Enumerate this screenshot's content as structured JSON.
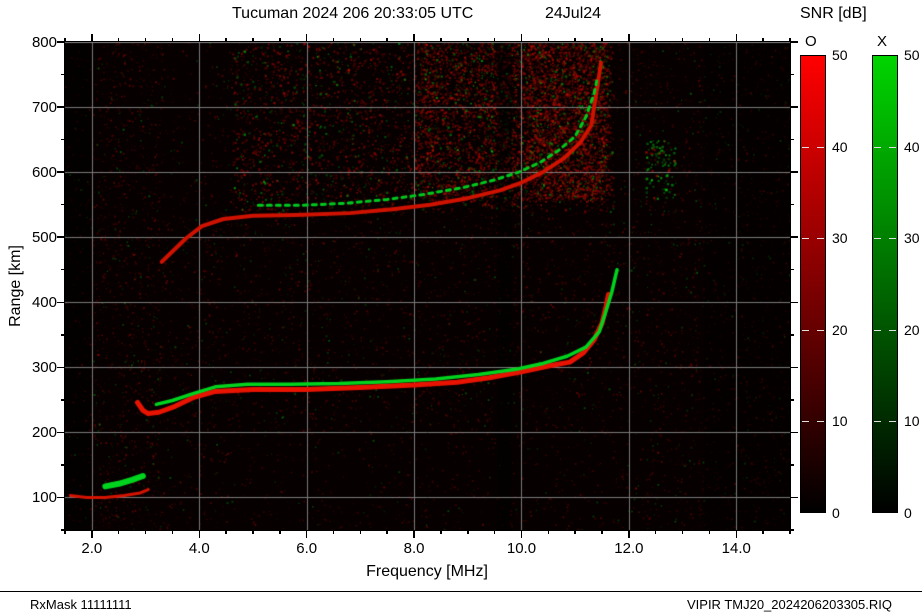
{
  "header": {
    "title": "Tucuman 2024 206 20:33:05 UTC",
    "date": "24Jul24"
  },
  "snr_panel": {
    "title": "SNR [dB]",
    "bars": [
      {
        "label": "O",
        "top_color": "#ff0000",
        "bottom_color": "#000000"
      },
      {
        "label": "X",
        "top_color": "#00d400",
        "bottom_color": "#000000"
      }
    ],
    "tick_values": [
      50,
      40,
      30,
      20,
      10,
      0
    ],
    "dash_values": [
      10,
      20,
      30,
      40
    ],
    "range": [
      0,
      50
    ]
  },
  "footer": {
    "left": "RxMask 11111111",
    "right": "VIPIR  TMJ20_2024206203305.RIQ"
  },
  "chart_data": {
    "type": "heatmap",
    "title": "Tucuman 2024 206 20:33:05 UTC",
    "subtitle": "24Jul24",
    "xlabel": "Frequency [MHz]",
    "ylabel": "Range [km]",
    "xlim": [
      1.5,
      15.0
    ],
    "ylim": [
      50,
      800
    ],
    "grid": true,
    "grid_color": "#7a7a7a",
    "background": "#060000",
    "legend": "SNR [dB] colorbars: O-mode red 0-50 dB, X-mode green 0-50 dB",
    "x_ticks": [
      {
        "v": 2,
        "label": "2.0"
      },
      {
        "v": 4,
        "label": "4.0"
      },
      {
        "v": 6,
        "label": "6.0"
      },
      {
        "v": 8,
        "label": "8.0"
      },
      {
        "v": 10,
        "label": "10.0"
      },
      {
        "v": 12,
        "label": "12.0"
      },
      {
        "v": 14,
        "label": "14.0"
      }
    ],
    "x_minor_step": 0.5,
    "y_ticks": [
      {
        "v": 100,
        "label": "100"
      },
      {
        "v": 200,
        "label": "200"
      },
      {
        "v": 300,
        "label": "300"
      },
      {
        "v": 400,
        "label": "400"
      },
      {
        "v": 500,
        "label": "500"
      },
      {
        "v": 600,
        "label": "600"
      },
      {
        "v": 700,
        "label": "700"
      },
      {
        "v": 800,
        "label": "800"
      }
    ],
    "y_minor_step": 50,
    "series": [
      {
        "name": "F-layer first hop O-mode",
        "color": "#e81300",
        "width": 5,
        "dash": [],
        "points": [
          [
            2.85,
            246
          ],
          [
            2.95,
            234
          ],
          [
            3.05,
            229
          ],
          [
            3.25,
            231
          ],
          [
            3.55,
            240
          ],
          [
            3.9,
            254
          ],
          [
            4.3,
            263
          ],
          [
            5.0,
            266
          ],
          [
            6.0,
            266
          ],
          [
            7.0,
            269
          ],
          [
            8.0,
            273
          ],
          [
            8.8,
            277
          ],
          [
            9.4,
            284
          ],
          [
            10.0,
            293
          ],
          [
            10.5,
            302
          ],
          [
            10.9,
            308
          ],
          [
            11.15,
            322
          ],
          [
            11.35,
            342
          ],
          [
            11.5,
            368
          ],
          [
            11.58,
            395
          ],
          [
            11.62,
            412
          ]
        ]
      },
      {
        "name": "F-layer first hop X-mode",
        "color": "#00d41e",
        "width": 3.5,
        "dash": [],
        "points": [
          [
            3.2,
            243
          ],
          [
            3.5,
            249
          ],
          [
            3.9,
            260
          ],
          [
            4.3,
            270
          ],
          [
            4.9,
            274
          ],
          [
            5.7,
            274
          ],
          [
            6.6,
            275
          ],
          [
            7.5,
            278
          ],
          [
            8.4,
            282
          ],
          [
            9.2,
            289
          ],
          [
            9.9,
            297
          ],
          [
            10.4,
            306
          ],
          [
            10.85,
            317
          ],
          [
            11.2,
            331
          ],
          [
            11.45,
            355
          ],
          [
            11.55,
            380
          ],
          [
            11.68,
            415
          ],
          [
            11.75,
            440
          ],
          [
            11.78,
            450
          ]
        ]
      },
      {
        "name": "F-layer second hop O-mode",
        "color": "#cf1200",
        "width": 4,
        "dash": [],
        "points": [
          [
            3.3,
            462
          ],
          [
            3.5,
            478
          ],
          [
            3.75,
            498
          ],
          [
            4.05,
            517
          ],
          [
            4.45,
            528
          ],
          [
            5.0,
            533
          ],
          [
            5.8,
            534
          ],
          [
            6.8,
            537
          ],
          [
            7.6,
            543
          ],
          [
            8.3,
            550
          ],
          [
            9.0,
            560
          ],
          [
            9.6,
            572
          ],
          [
            10.0,
            584
          ],
          [
            10.4,
            600
          ],
          [
            10.8,
            622
          ],
          [
            11.1,
            646
          ],
          [
            11.3,
            672
          ],
          [
            11.42,
            735
          ],
          [
            11.48,
            768
          ]
        ]
      },
      {
        "name": "F-layer second hop X-mode",
        "color": "#00c81e",
        "width": 3,
        "dash": [
          4,
          5
        ],
        "points": [
          [
            5.1,
            549
          ],
          [
            5.9,
            549
          ],
          [
            6.7,
            552
          ],
          [
            7.5,
            558
          ],
          [
            8.2,
            566
          ],
          [
            8.9,
            576
          ],
          [
            9.5,
            588
          ],
          [
            9.95,
            600
          ],
          [
            10.35,
            615
          ],
          [
            10.7,
            634
          ],
          [
            11.0,
            655
          ],
          [
            11.2,
            685
          ],
          [
            11.35,
            720
          ],
          [
            11.4,
            740
          ]
        ]
      },
      {
        "name": "E-layer O-mode",
        "color": "#d41300",
        "width": 3,
        "dash": [],
        "points": [
          [
            1.6,
            103
          ],
          [
            1.9,
            100
          ],
          [
            2.25,
            100
          ],
          [
            2.6,
            103
          ],
          [
            2.9,
            107
          ],
          [
            3.05,
            112
          ]
        ]
      },
      {
        "name": "E-layer X-mode",
        "color": "#00d41e",
        "width": 6,
        "dash": [],
        "points": [
          [
            2.25,
            117
          ],
          [
            2.5,
            121
          ],
          [
            2.75,
            127
          ],
          [
            2.95,
            133
          ]
        ]
      }
    ],
    "noise_regions": [
      {
        "f": [
          1.5,
          15.0
        ],
        "r": [
          50,
          800
        ],
        "count": 5200,
        "green_fraction": 0.12,
        "alpha": [
          0.12,
          0.45
        ],
        "size": [
          1,
          2
        ]
      },
      {
        "f": [
          2.0,
          3.3
        ],
        "r": [
          50,
          800
        ],
        "count": 700,
        "green_fraction": 0.08,
        "alpha": [
          0.15,
          0.45
        ],
        "size": [
          1,
          2
        ]
      },
      {
        "f": [
          4.6,
          11.7
        ],
        "r": [
          540,
          800
        ],
        "count": 3200,
        "green_fraction": 0.15,
        "alpha": [
          0.2,
          0.6
        ],
        "size": [
          1,
          2.4
        ]
      },
      {
        "f": [
          8.0,
          11.65
        ],
        "r": [
          555,
          800
        ],
        "count": 2800,
        "green_fraction": 0.12,
        "alpha": [
          0.25,
          0.7
        ],
        "size": [
          1,
          2.4
        ]
      },
      {
        "f": [
          10.1,
          11.55
        ],
        "r": [
          560,
          800
        ],
        "count": 1400,
        "green_fraction": 0.1,
        "alpha": [
          0.25,
          0.7
        ],
        "size": [
          1,
          2.2
        ]
      },
      {
        "f": [
          11.8,
          15.0
        ],
        "r": [
          50,
          800
        ],
        "count": 700,
        "green_fraction": 0.2,
        "alpha": [
          0.12,
          0.4
        ],
        "size": [
          1,
          2
        ]
      },
      {
        "f": [
          12.3,
          12.85
        ],
        "r": [
          560,
          650
        ],
        "count": 90,
        "green_fraction": 0.85,
        "alpha": [
          0.35,
          0.8
        ],
        "size": [
          1.5,
          2.6
        ]
      },
      {
        "f": [
          3.3,
          11.8
        ],
        "r": [
          200,
          540
        ],
        "count": 900,
        "green_fraction": 0.15,
        "alpha": [
          0.12,
          0.4
        ],
        "size": [
          1,
          2
        ]
      }
    ],
    "dark_regions": [
      {
        "f": [
          9.55,
          9.82
        ],
        "r": [
          50,
          800
        ],
        "alpha": 0.5
      },
      {
        "f": [
          1.5,
          1.95
        ],
        "r": [
          50,
          800
        ],
        "alpha": 0.35
      },
      {
        "f": [
          13.4,
          15.0
        ],
        "r": [
          50,
          800
        ],
        "alpha": 0.3
      }
    ]
  }
}
